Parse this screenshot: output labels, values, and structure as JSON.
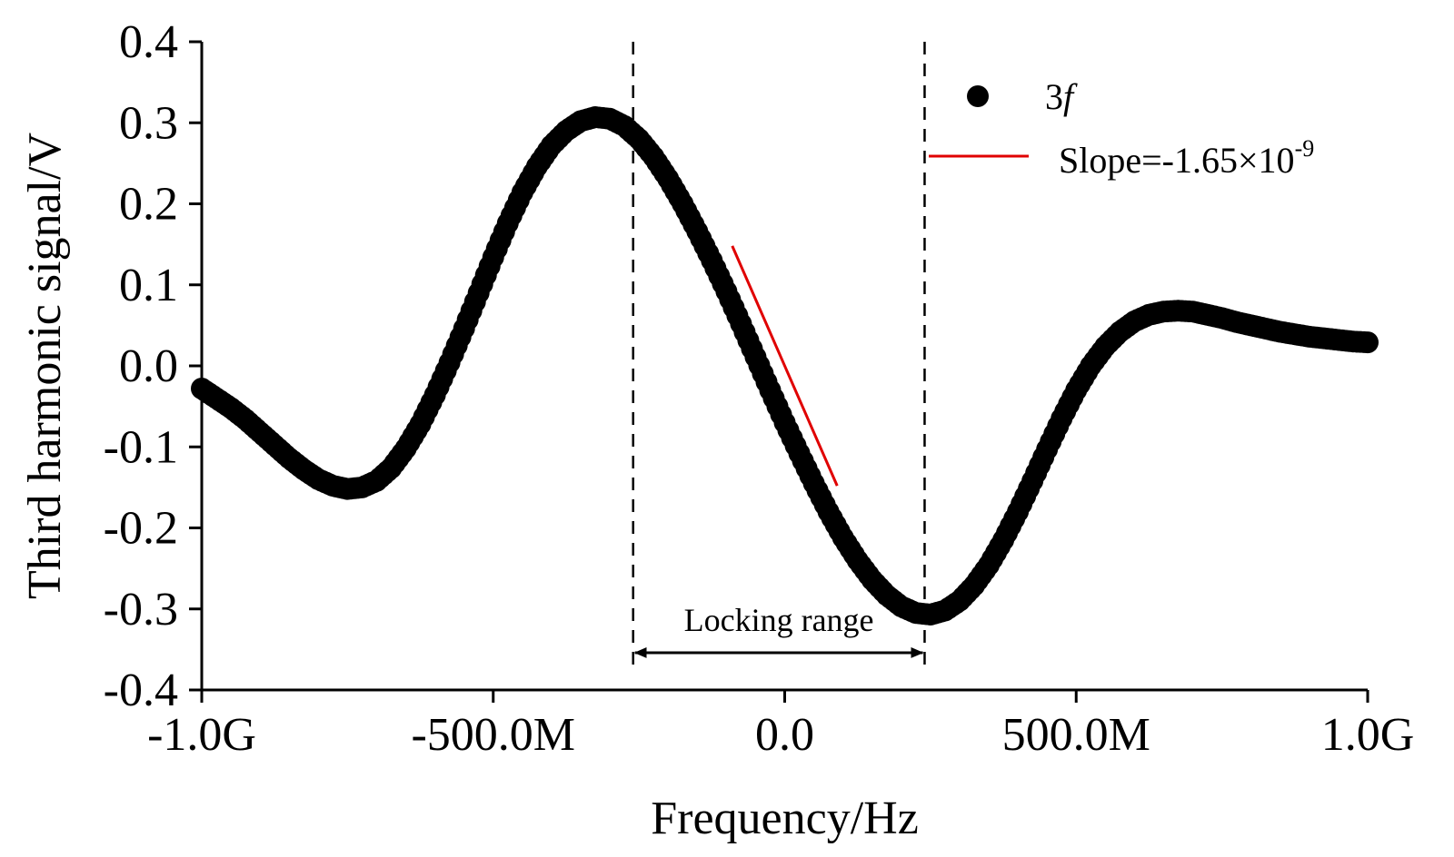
{
  "chart_data": {
    "type": "scatter",
    "xlabel": "Frequency/Hz",
    "ylabel": "Third harmonic signal/V",
    "xlim": [
      -1000000000,
      1000000000
    ],
    "ylim": [
      -0.4,
      0.4
    ],
    "x_ticks": [
      {
        "value": -1000000000,
        "label": "-1.0G"
      },
      {
        "value": -500000000,
        "label": "-500.0M"
      },
      {
        "value": 0,
        "label": "0.0"
      },
      {
        "value": 500000000,
        "label": "500.0M"
      },
      {
        "value": 1000000000,
        "label": "1.0G"
      }
    ],
    "y_ticks": [
      {
        "value": 0.4,
        "label": "0.4"
      },
      {
        "value": 0.3,
        "label": "0.3"
      },
      {
        "value": 0.2,
        "label": "0.2"
      },
      {
        "value": 0.1,
        "label": "0.1"
      },
      {
        "value": 0.0,
        "label": "0.0"
      },
      {
        "value": -0.1,
        "label": "-0.1"
      },
      {
        "value": -0.2,
        "label": "-0.2"
      },
      {
        "value": -0.3,
        "label": "-0.3"
      },
      {
        "value": -0.4,
        "label": "-0.4"
      }
    ],
    "grid": false,
    "legend_position": "top-right",
    "series": [
      {
        "name": "3f",
        "kind": "scatter",
        "color": "#000000",
        "points": [
          [
            -1000000000,
            -0.028
          ],
          [
            -975000000,
            -0.04
          ],
          [
            -950000000,
            -0.052
          ],
          [
            -925000000,
            -0.066
          ],
          [
            -900000000,
            -0.082
          ],
          [
            -875000000,
            -0.098
          ],
          [
            -850000000,
            -0.114
          ],
          [
            -825000000,
            -0.128
          ],
          [
            -800000000,
            -0.14
          ],
          [
            -775000000,
            -0.148
          ],
          [
            -750000000,
            -0.152
          ],
          [
            -725000000,
            -0.15
          ],
          [
            -700000000,
            -0.142
          ],
          [
            -675000000,
            -0.126
          ],
          [
            -650000000,
            -0.102
          ],
          [
            -625000000,
            -0.072
          ],
          [
            -600000000,
            -0.036
          ],
          [
            -575000000,
            0.004
          ],
          [
            -550000000,
            0.046
          ],
          [
            -525000000,
            0.09
          ],
          [
            -500000000,
            0.134
          ],
          [
            -475000000,
            0.176
          ],
          [
            -450000000,
            0.214
          ],
          [
            -425000000,
            0.246
          ],
          [
            -400000000,
            0.272
          ],
          [
            -375000000,
            0.29
          ],
          [
            -350000000,
            0.302
          ],
          [
            -325000000,
            0.307
          ],
          [
            -300000000,
            0.305
          ],
          [
            -275000000,
            0.296
          ],
          [
            -250000000,
            0.28
          ],
          [
            -225000000,
            0.258
          ],
          [
            -200000000,
            0.231
          ],
          [
            -175000000,
            0.2
          ],
          [
            -150000000,
            0.166
          ],
          [
            -125000000,
            0.13
          ],
          [
            -100000000,
            0.092
          ],
          [
            -75000000,
            0.052
          ],
          [
            -50000000,
            0.011
          ],
          [
            -25000000,
            -0.03
          ],
          [
            0,
            -0.07
          ],
          [
            25000000,
            -0.108
          ],
          [
            50000000,
            -0.145
          ],
          [
            75000000,
            -0.18
          ],
          [
            100000000,
            -0.212
          ],
          [
            125000000,
            -0.24
          ],
          [
            150000000,
            -0.264
          ],
          [
            175000000,
            -0.283
          ],
          [
            200000000,
            -0.297
          ],
          [
            225000000,
            -0.305
          ],
          [
            250000000,
            -0.307
          ],
          [
            275000000,
            -0.302
          ],
          [
            300000000,
            -0.29
          ],
          [
            325000000,
            -0.271
          ],
          [
            350000000,
            -0.246
          ],
          [
            375000000,
            -0.215
          ],
          [
            400000000,
            -0.18
          ],
          [
            425000000,
            -0.142
          ],
          [
            450000000,
            -0.103
          ],
          [
            475000000,
            -0.065
          ],
          [
            500000000,
            -0.03
          ],
          [
            525000000,
            0.0
          ],
          [
            550000000,
            0.024
          ],
          [
            575000000,
            0.042
          ],
          [
            600000000,
            0.055
          ],
          [
            625000000,
            0.063
          ],
          [
            650000000,
            0.067
          ],
          [
            675000000,
            0.068
          ],
          [
            700000000,
            0.067
          ],
          [
            725000000,
            0.063
          ],
          [
            750000000,
            0.059
          ],
          [
            775000000,
            0.054
          ],
          [
            800000000,
            0.05
          ],
          [
            825000000,
            0.046
          ],
          [
            850000000,
            0.042
          ],
          [
            875000000,
            0.039
          ],
          [
            900000000,
            0.036
          ],
          [
            925000000,
            0.034
          ],
          [
            950000000,
            0.032
          ],
          [
            975000000,
            0.03
          ],
          [
            1000000000,
            0.029
          ]
        ]
      },
      {
        "name": "Slope=-1.65×10-9",
        "kind": "line",
        "color": "#e00000",
        "points": [
          [
            -90000000,
            0.148
          ],
          [
            90000000,
            -0.148
          ]
        ]
      }
    ],
    "legend": [
      {
        "label_main": "3",
        "label_italic": "f",
        "marker": "circle"
      },
      {
        "label_main": "Slope=-1.65×10",
        "label_sup": "-9",
        "marker": "line"
      }
    ],
    "vlines": [
      {
        "x": -260000000,
        "style": "dashed"
      },
      {
        "x": 240000000,
        "style": "dashed"
      }
    ],
    "annotation": {
      "text": "Locking range",
      "x_start": -260000000,
      "x_end": 240000000,
      "y": -0.354
    }
  }
}
